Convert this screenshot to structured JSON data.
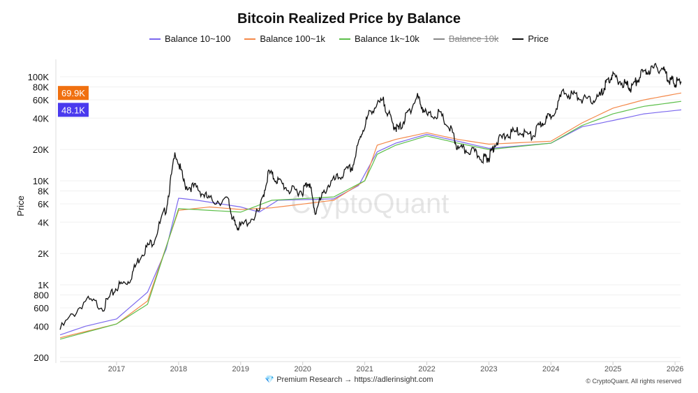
{
  "chart_data": {
    "type": "line",
    "title": "Bitcoin Realized Price by Balance",
    "ylabel": "Price",
    "xlabel": "",
    "yscale": "log",
    "ylim": [
      200,
      130000
    ],
    "xlim": [
      2016.09,
      2026.1
    ],
    "grid": "horizontal",
    "legend_placement": "top",
    "x_ticks": [
      "2017",
      "2018",
      "2019",
      "2020",
      "2021",
      "2022",
      "2023",
      "2024",
      "2025",
      "2026"
    ],
    "y_ticks": [
      {
        "v": 100000,
        "l": "100K"
      },
      {
        "v": 80000,
        "l": "80K"
      },
      {
        "v": 60000,
        "l": "60K"
      },
      {
        "v": 40000,
        "l": "40K"
      },
      {
        "v": 20000,
        "l": "20K"
      },
      {
        "v": 10000,
        "l": "10K"
      },
      {
        "v": 8000,
        "l": "8K"
      },
      {
        "v": 6000,
        "l": "6K"
      },
      {
        "v": 4000,
        "l": "4K"
      },
      {
        "v": 2000,
        "l": "2K"
      },
      {
        "v": 1000,
        "l": "1K"
      },
      {
        "v": 800,
        "l": "800"
      },
      {
        "v": 600,
        "l": "600"
      },
      {
        "v": 400,
        "l": "400"
      },
      {
        "v": 200,
        "l": "200"
      }
    ],
    "last_value_labels": [
      {
        "label": "69.9K",
        "color": "#f07010"
      },
      {
        "label": "48.1K",
        "color": "#4a3aee"
      }
    ],
    "series": [
      {
        "name": "Balance 10~100",
        "color": "#7b68ee",
        "visible": true,
        "x": [
          2016.09,
          2016.5,
          2017.0,
          2017.5,
          2017.8,
          2018.0,
          2018.3,
          2019.0,
          2019.3,
          2019.6,
          2020.5,
          2020.9,
          2021.2,
          2021.5,
          2022.0,
          2022.5,
          2023.0,
          2024.0,
          2024.5,
          2025.0,
          2025.5,
          2026.1
        ],
        "y": [
          330,
          400,
          470,
          850,
          2200,
          6800,
          6500,
          5600,
          5000,
          6500,
          6700,
          9000,
          19000,
          23000,
          28000,
          24000,
          20500,
          23000,
          33000,
          38000,
          44000,
          48100
        ]
      },
      {
        "name": "Balance 100~1k",
        "color": "#f4894a",
        "visible": true,
        "x": [
          2016.09,
          2017.0,
          2017.5,
          2018.0,
          2018.5,
          2019.0,
          2019.5,
          2020.5,
          2021.0,
          2021.2,
          2021.5,
          2022.0,
          2022.5,
          2023.0,
          2024.0,
          2024.5,
          2025.0,
          2025.5,
          2026.1
        ],
        "y": [
          310,
          420,
          700,
          5200,
          5600,
          5300,
          5500,
          6500,
          10000,
          22000,
          25000,
          29000,
          25000,
          22500,
          24000,
          36000,
          50000,
          60000,
          69900
        ]
      },
      {
        "name": "Balance 1k~10k",
        "color": "#5cbf4a",
        "visible": true,
        "x": [
          2016.09,
          2017.0,
          2017.5,
          2018.0,
          2019.0,
          2019.5,
          2020.5,
          2021.0,
          2021.2,
          2021.5,
          2022.0,
          2022.5,
          2023.0,
          2024.0,
          2024.5,
          2025.0,
          2025.5,
          2026.1
        ],
        "y": [
          300,
          420,
          650,
          5400,
          5000,
          6500,
          7000,
          10000,
          18000,
          22000,
          27000,
          23000,
          20000,
          23000,
          34000,
          44000,
          52000,
          58000
        ]
      },
      {
        "name": "Balance 10k",
        "color": "#888888",
        "visible": false,
        "x": [],
        "y": []
      },
      {
        "name": "Price",
        "color": "#111111",
        "visible": true,
        "x": [
          2016.09,
          2016.5,
          2016.8,
          2017.0,
          2017.2,
          2017.4,
          2017.6,
          2017.8,
          2017.95,
          2018.1,
          2018.3,
          2018.5,
          2018.8,
          2018.9,
          2019.0,
          2019.3,
          2019.45,
          2019.6,
          2019.8,
          2020.0,
          2020.1,
          2020.2,
          2020.4,
          2020.6,
          2020.8,
          2020.95,
          2021.1,
          2021.3,
          2021.45,
          2021.55,
          2021.7,
          2021.85,
          2022.0,
          2022.2,
          2022.4,
          2022.5,
          2022.7,
          2022.9,
          2023.0,
          2023.1,
          2023.3,
          2023.5,
          2023.7,
          2023.85,
          2024.0,
          2024.2,
          2024.4,
          2024.6,
          2024.8,
          2024.9,
          2025.0,
          2025.2,
          2025.3,
          2025.45,
          2025.6,
          2025.8,
          2025.9,
          2026.0,
          2026.1
        ],
        "y": [
          370,
          710,
          620,
          950,
          1100,
          2000,
          2700,
          5500,
          19000,
          9000,
          8500,
          6500,
          6400,
          3800,
          3600,
          5000,
          12000,
          10000,
          8000,
          8000,
          10000,
          5000,
          9000,
          11000,
          13500,
          29000,
          48000,
          58000,
          35000,
          31000,
          45000,
          64000,
          42000,
          44000,
          30000,
          20000,
          19500,
          16500,
          16800,
          23000,
          28000,
          30000,
          26500,
          36000,
          42000,
          70000,
          66000,
          58000,
          65000,
          90000,
          100000,
          84000,
          78000,
          105000,
          118000,
          122000,
          95000,
          88000,
          90000
        ]
      }
    ]
  },
  "watermark": "CryptoQuant",
  "footer": {
    "icon": "gem-icon",
    "text": "Premium Research →",
    "link": "https://adlerinsight.com"
  },
  "copyright": "© CryptoQuant. All rights reserved"
}
